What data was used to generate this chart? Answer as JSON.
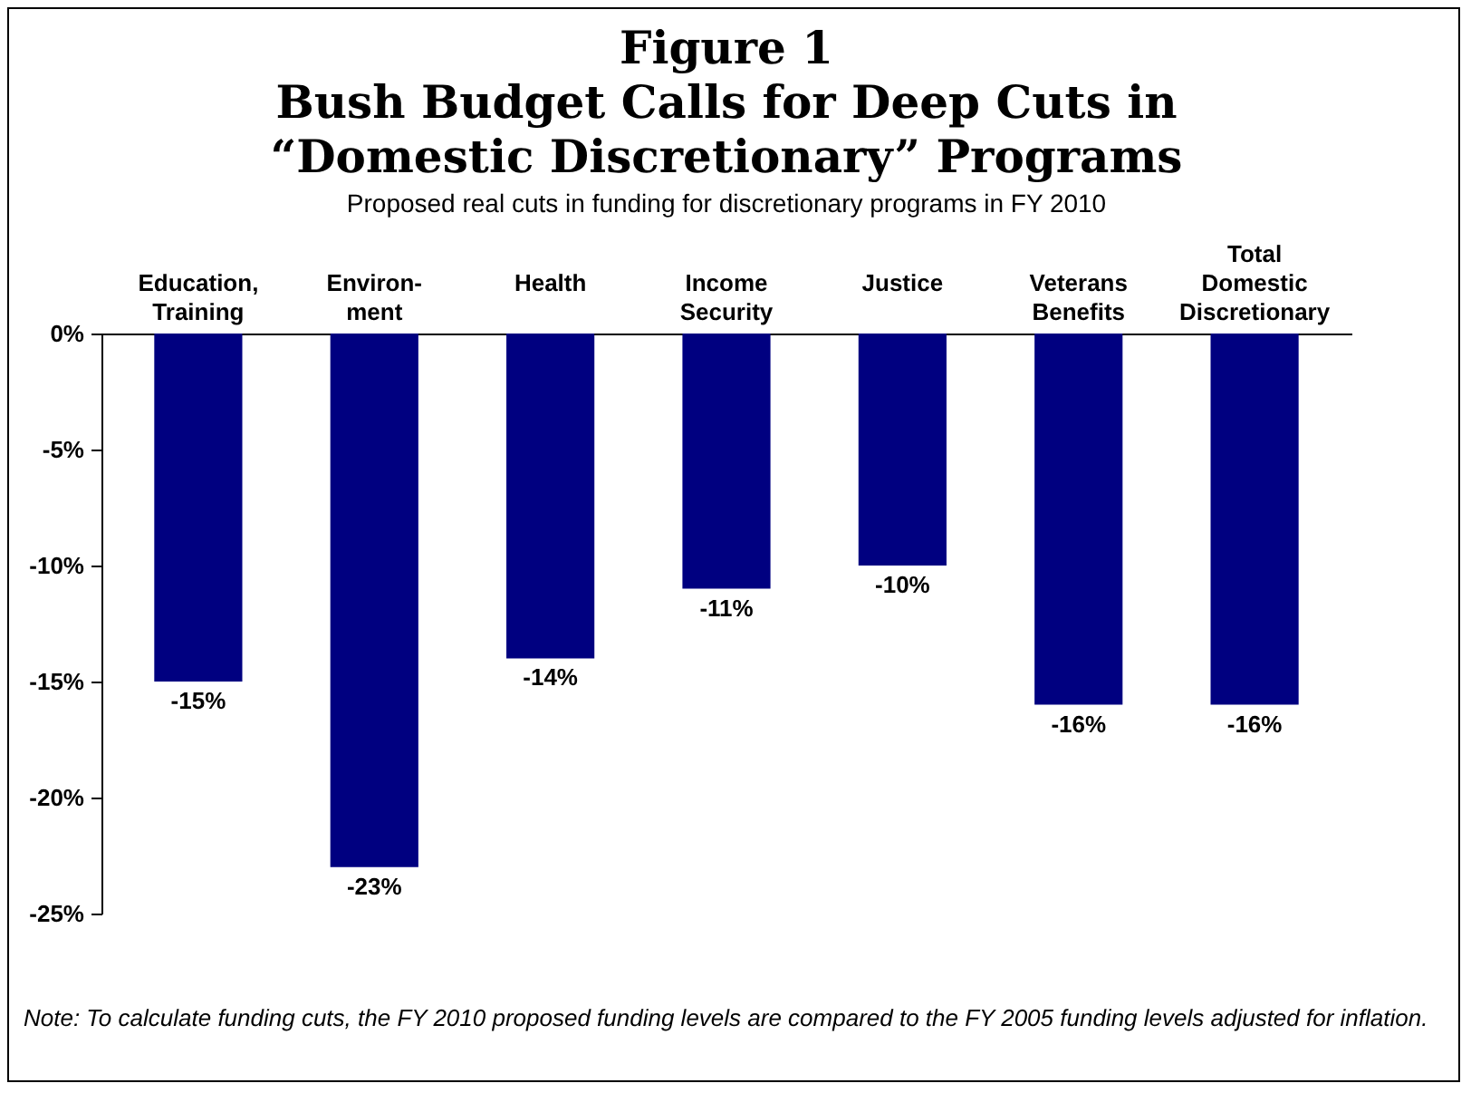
{
  "chart_data": {
    "type": "bar",
    "title": "Figure 1\nBush Budget Calls for Deep Cuts in\n“Domestic Discretionary” Programs",
    "subtitle": "Proposed real cuts in funding for discretionary programs in FY 2010",
    "categories": [
      "Education,\nTraining",
      "Environ-\nment",
      "Health",
      "Income\nSecurity",
      "Justice",
      "Veterans\nBenefits",
      "Total\nDomestic\nDiscretionary"
    ],
    "values": [
      -15,
      -23,
      -14,
      -11,
      -10,
      -16,
      -16
    ],
    "value_labels": [
      "-15%",
      "-23%",
      "-14%",
      "-11%",
      "-10%",
      "-16%",
      "-16%"
    ],
    "color": "#000080",
    "ylim": [
      -25,
      0
    ],
    "yticks": [
      {
        "value": 0,
        "label": "0%"
      },
      {
        "value": -5,
        "label": "-5%"
      },
      {
        "value": -10,
        "label": "-10%"
      },
      {
        "value": -15,
        "label": "-15%"
      },
      {
        "value": -20,
        "label": "-20%"
      },
      {
        "value": -25,
        "label": "-25%"
      }
    ],
    "grid": false,
    "annotations": [
      "Note: To calculate funding cuts, the FY 2010 proposed funding levels are compared to the FY 2005 funding levels adjusted for inflation."
    ]
  }
}
